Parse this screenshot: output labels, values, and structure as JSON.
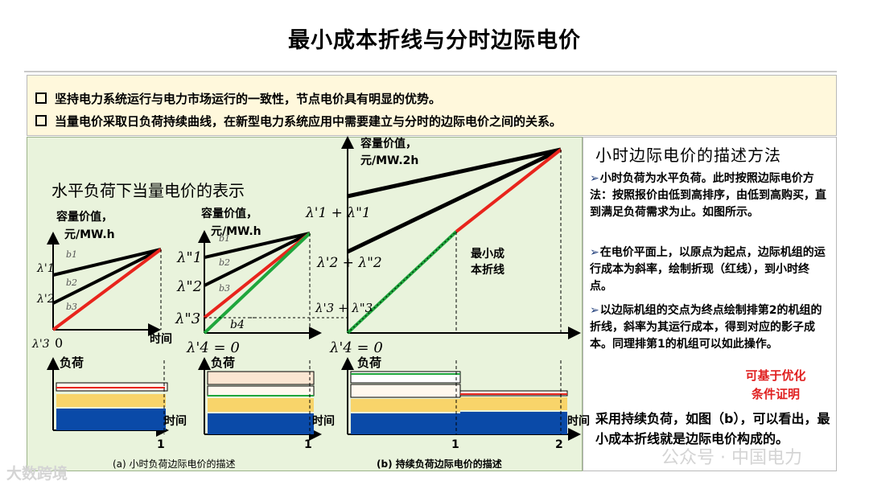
{
  "title": "最小成本折线与分时边际电价",
  "bullets": [
    "坚持电力系统运行与电力市场运行的一致性，节点电价具有明显的优势。",
    "当量电价采取日负荷持续曲线，在新型电力系统应用中需要建立与分时的边际电价之间的关系。"
  ],
  "diagram": {
    "horizontal_title": "水平负荷下当量电价的表示",
    "chart1": {
      "ylabel_1": "容量价值，",
      "ylabel_2": "元/MW.h",
      "b1": "b1",
      "b2": "b2",
      "b3": "b3",
      "l1": "λ'1",
      "l2": "λ'2",
      "l3": "λ'3",
      "origin": "0",
      "time": "时间"
    },
    "chart2": {
      "ylabel_1": "容量价值，",
      "ylabel_2": "元/MW.h",
      "l1": "λ\"1",
      "l2": "λ\"2",
      "l3": "λ\"3",
      "b1": "b1",
      "b2": "b2",
      "b3": "b3",
      "b4": "b4",
      "l4": "λ'4 = 0"
    },
    "chart3": {
      "ylabel_1": "容量价值，",
      "ylabel_2": "元/MW.2h",
      "s1": "λ'1 + λ\"1",
      "s2": "λ'2 + λ\"2",
      "s3": "λ'3 + λ\"3",
      "l4": "λ'4 = 0",
      "min_label_1": "最小成",
      "min_label_2": "本折线"
    },
    "load": {
      "label": "负荷",
      "time": "时间",
      "one": "1",
      "two": "2"
    },
    "caption_a": "(a) 小时负荷边际电价的描述",
    "caption_b": "(b) 持续负荷边际电价的描述",
    "colors": {
      "red": "#e8241c",
      "green": "#1fa63c",
      "navy": "#0a4aa8",
      "yellow": "#f8d46a",
      "peach": "#fbe6d2"
    }
  },
  "right_panel": {
    "title": "小时边际电价的描述方法",
    "items": [
      "小时负荷为水平负荷。此时按照边际电价方法：按照报价由低到高排序，由低到高购买，直到满足负荷需求为止。如图所示。",
      "在电价平面上，以原点为起点，边际机组的运行成本为斜率，绘制折现（红线），到小时终点。",
      "以边际机组的交点为终点绘制排第2的机组的折线，斜率为其运行成本，得到对应的影子成本。同理排第1的机组可以如此操作。"
    ],
    "red_note_1": "可基于优化",
    "red_note_2": "条件证明",
    "bottom": "采用持续负荷，如图（b），可以看出，最小成本折线就是边际电价构成的。"
  },
  "watermarks": {
    "left": "大数跨境",
    "right": "公众号 · 中国电力"
  }
}
